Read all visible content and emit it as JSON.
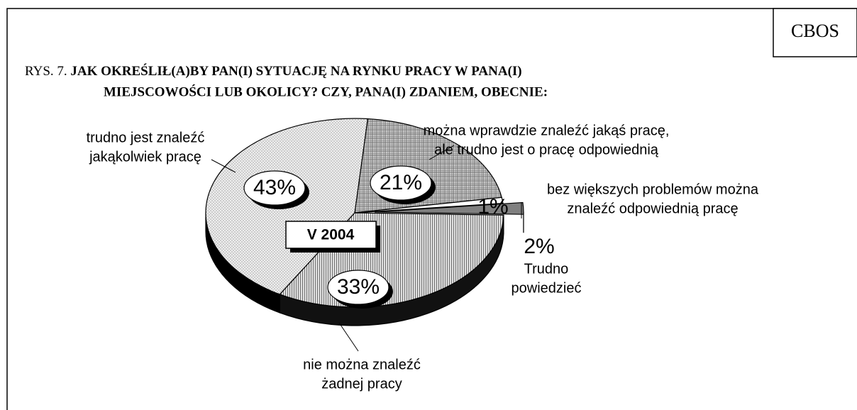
{
  "chart_data": {
    "type": "pie",
    "source": "CBOS",
    "title_prefix": "RYS. 7.",
    "title": [
      "JAK OKREŚLIŁ(A)BY PAN(I) SYTUACJĘ NA RYNKU PRACY W PANA(I)",
      "MIEJSCOWOŚCI LUB OKOLICY? CZY, PANA(I) ZDANIEM, OBECNIE:"
    ],
    "date_label": "V 2004",
    "categories": [
      [
        "można wprawdzie znaleźć jakąś pracę,",
        "ale trudno jest o pracę odpowiednią"
      ],
      [
        "bez większych problemów można",
        "znaleźć odpowiednią pracę"
      ],
      [
        "Trudno",
        "powiedzieć"
      ],
      [
        "nie można znaleźć",
        "żadnej pracy"
      ],
      [
        "trudno jest znaleźć",
        "jakąkolwiek pracę"
      ]
    ],
    "values": [
      21,
      1,
      2,
      33,
      43
    ],
    "value_labels": [
      "21%",
      "1%",
      "2%",
      "33%",
      "43%"
    ],
    "colors": [
      "#c8c8c8",
      "#ffffff",
      "#808080",
      "#e0e0e0",
      "#eeeeee"
    ]
  }
}
